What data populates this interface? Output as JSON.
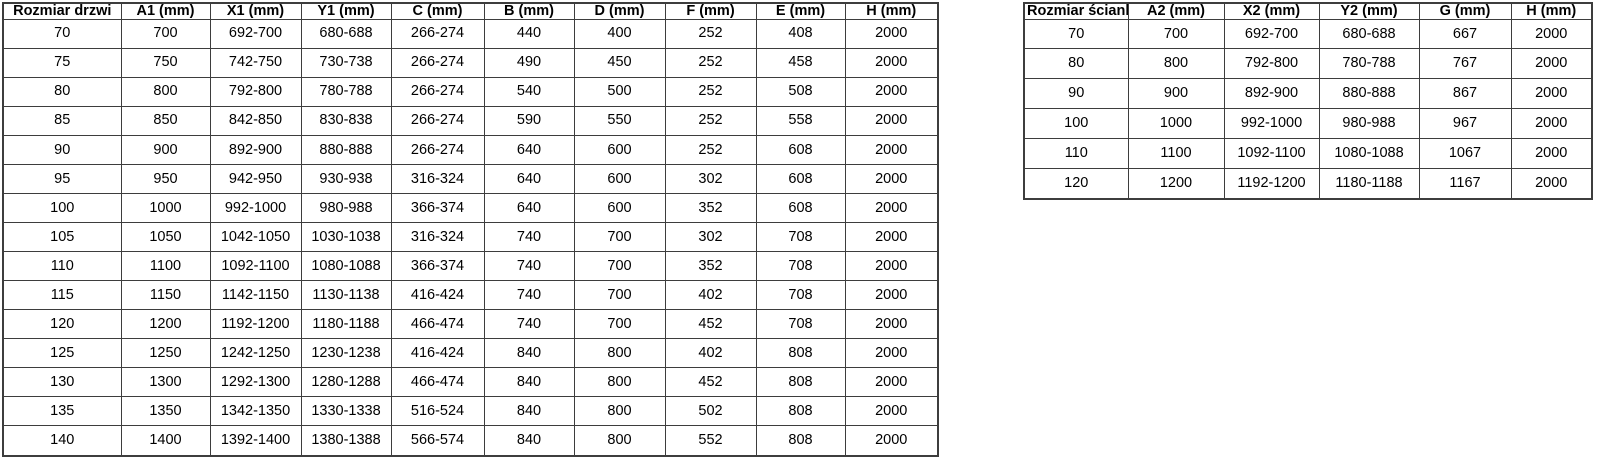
{
  "colors": {
    "background": "#ffffff",
    "border": "#3d3d3d",
    "text": "#000000"
  },
  "tables": {
    "door_table": {
      "name": "Rozmiar drzwi",
      "headers": [
        "Rozmiar drzwi",
        "A1 (mm)",
        "X1 (mm)",
        "Y1 (mm)",
        "C (mm)",
        "B (mm)",
        "D (mm)",
        "F (mm)",
        "E (mm)",
        "H (mm)"
      ],
      "rows": [
        [
          "70",
          "700",
          "692-700",
          "680-688",
          "266-274",
          "440",
          "400",
          "252",
          "408",
          "2000"
        ],
        [
          "75",
          "750",
          "742-750",
          "730-738",
          "266-274",
          "490",
          "450",
          "252",
          "458",
          "2000"
        ],
        [
          "80",
          "800",
          "792-800",
          "780-788",
          "266-274",
          "540",
          "500",
          "252",
          "508",
          "2000"
        ],
        [
          "85",
          "850",
          "842-850",
          "830-838",
          "266-274",
          "590",
          "550",
          "252",
          "558",
          "2000"
        ],
        [
          "90",
          "900",
          "892-900",
          "880-888",
          "266-274",
          "640",
          "600",
          "252",
          "608",
          "2000"
        ],
        [
          "95",
          "950",
          "942-950",
          "930-938",
          "316-324",
          "640",
          "600",
          "302",
          "608",
          "2000"
        ],
        [
          "100",
          "1000",
          "992-1000",
          "980-988",
          "366-374",
          "640",
          "600",
          "352",
          "608",
          "2000"
        ],
        [
          "105",
          "1050",
          "1042-1050",
          "1030-1038",
          "316-324",
          "740",
          "700",
          "302",
          "708",
          "2000"
        ],
        [
          "110",
          "1100",
          "1092-1100",
          "1080-1088",
          "366-374",
          "740",
          "700",
          "352",
          "708",
          "2000"
        ],
        [
          "115",
          "1150",
          "1142-1150",
          "1130-1138",
          "416-424",
          "740",
          "700",
          "402",
          "708",
          "2000"
        ],
        [
          "120",
          "1200",
          "1192-1200",
          "1180-1188",
          "466-474",
          "740",
          "700",
          "452",
          "708",
          "2000"
        ],
        [
          "125",
          "1250",
          "1242-1250",
          "1230-1238",
          "416-424",
          "840",
          "800",
          "402",
          "808",
          "2000"
        ],
        [
          "130",
          "1300",
          "1292-1300",
          "1280-1288",
          "466-474",
          "840",
          "800",
          "452",
          "808",
          "2000"
        ],
        [
          "135",
          "1350",
          "1342-1350",
          "1330-1338",
          "516-524",
          "840",
          "800",
          "502",
          "808",
          "2000"
        ],
        [
          "140",
          "1400",
          "1392-1400",
          "1380-1388",
          "566-574",
          "840",
          "800",
          "552",
          "808",
          "2000"
        ]
      ]
    },
    "wall_table": {
      "name": "Rozmiar ścianki",
      "headers": [
        "Rozmiar ścianki",
        "A2 (mm)",
        "X2 (mm)",
        "Y2 (mm)",
        "G (mm)",
        "H (mm)"
      ],
      "rows": [
        [
          "70",
          "700",
          "692-700",
          "680-688",
          "667",
          "2000"
        ],
        [
          "80",
          "800",
          "792-800",
          "780-788",
          "767",
          "2000"
        ],
        [
          "90",
          "900",
          "892-900",
          "880-888",
          "867",
          "2000"
        ],
        [
          "100",
          "1000",
          "992-1000",
          "980-988",
          "967",
          "2000"
        ],
        [
          "110",
          "1100",
          "1092-1100",
          "1080-1088",
          "1067",
          "2000"
        ],
        [
          "120",
          "1200",
          "1192-1200",
          "1180-1188",
          "1167",
          "2000"
        ]
      ]
    }
  }
}
